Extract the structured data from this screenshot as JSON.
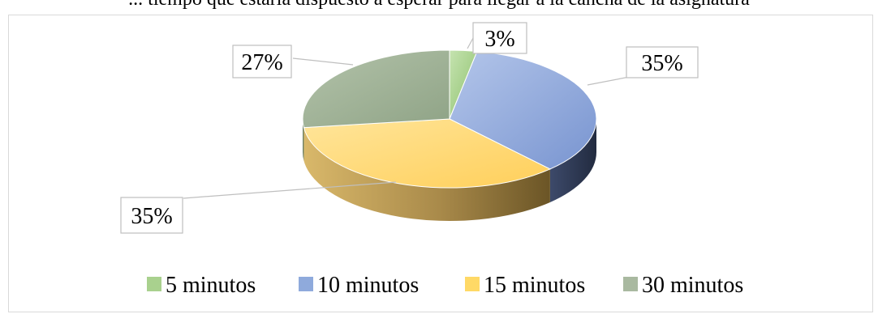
{
  "chart_data": {
    "type": "pie",
    "title": "... tiempo que estaría dispuesto a esperar para llegar a la cancha de la asignatura",
    "categories": [
      "5 minutos",
      "10 minutos",
      "15 minutos",
      "30 minutos"
    ],
    "values": [
      3,
      35,
      35,
      27
    ],
    "data_labels": [
      "3%",
      "35%",
      "35%",
      "27%"
    ],
    "colors": [
      "#a9d18e",
      "#8faadc",
      "#ffd966",
      "#a9b9a0"
    ],
    "legend_position": "bottom",
    "style": "3d"
  }
}
